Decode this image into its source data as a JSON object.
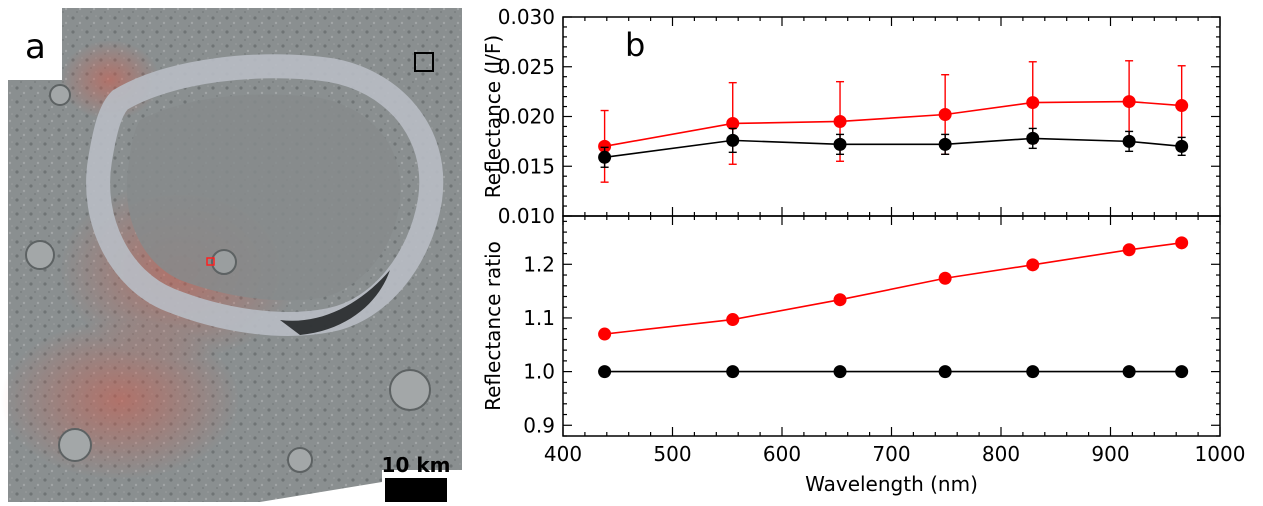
{
  "panel_a": {
    "label": "a",
    "scale_label": "10 km"
  },
  "panel_b": {
    "label": "b"
  },
  "chart_data": [
    {
      "type": "line",
      "ylabel": "Reflectance (I/F)",
      "xlim": [
        400,
        1000
      ],
      "ylim": [
        0.01,
        0.03
      ],
      "x": [
        438,
        555,
        653,
        749,
        829,
        917,
        965
      ],
      "yticks": [
        "0.010",
        "0.015",
        "0.020",
        "0.025",
        "0.030"
      ],
      "series": [
        {
          "color": "#ff0000",
          "values": [
            0.017,
            0.0193,
            0.0195,
            0.0202,
            0.0214,
            0.0215,
            0.0211
          ],
          "errors": [
            0.0036,
            0.0041,
            0.004,
            0.004,
            0.0041,
            0.0041,
            0.004
          ]
        },
        {
          "color": "#000000",
          "values": [
            0.0159,
            0.0176,
            0.0172,
            0.0172,
            0.0178,
            0.0175,
            0.017
          ],
          "errors": [
            0.001,
            0.0012,
            0.001,
            0.001,
            0.001,
            0.001,
            0.0009
          ]
        }
      ]
    },
    {
      "type": "line",
      "ylabel": "Reflectance ratio",
      "xlabel": "Wavelength (nm)",
      "xlim": [
        400,
        1000
      ],
      "ylim": [
        0.88,
        1.29
      ],
      "x": [
        438,
        555,
        653,
        749,
        829,
        917,
        965
      ],
      "xticks": [
        "400",
        "500",
        "600",
        "700",
        "800",
        "900",
        "1000"
      ],
      "yticks": [
        "0.9",
        "1.0",
        "1.1",
        "1.2"
      ],
      "series": [
        {
          "color": "#ff0000",
          "values": [
            1.07,
            1.097,
            1.134,
            1.174,
            1.199,
            1.227,
            1.24
          ]
        },
        {
          "color": "#000000",
          "values": [
            1.0,
            1.0,
            1.0,
            1.0,
            1.0,
            1.0,
            1.0
          ]
        }
      ]
    }
  ]
}
